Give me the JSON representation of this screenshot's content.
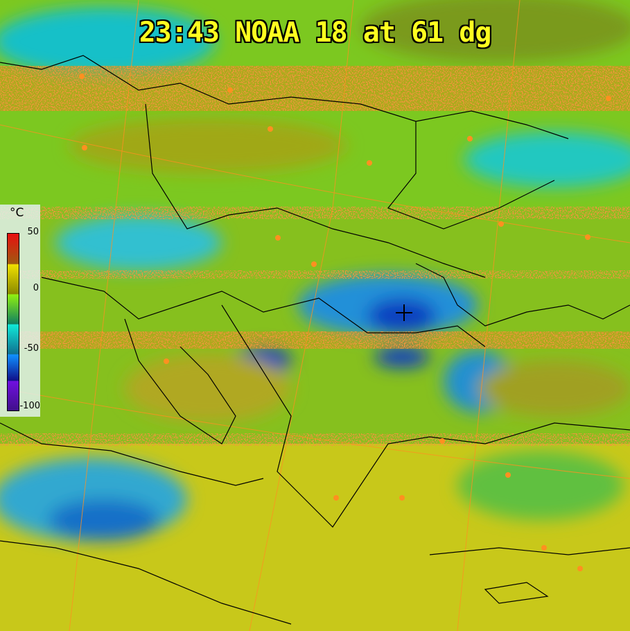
{
  "title": "23:43 NOAA 18 at 61 dg",
  "legend": {
    "unit": "°C",
    "ticks": [
      "50",
      "0",
      "-50",
      "-100"
    ],
    "colors": [
      "#e81010",
      "#f0e000",
      "#90f010",
      "#10e8d8",
      "#1090ff",
      "#7010e0"
    ]
  },
  "marker": "crosshair-icon",
  "colors": {
    "title": "#ffff20",
    "city": "#ff9020",
    "borders": "#000000",
    "graticule": "#ff9020"
  }
}
